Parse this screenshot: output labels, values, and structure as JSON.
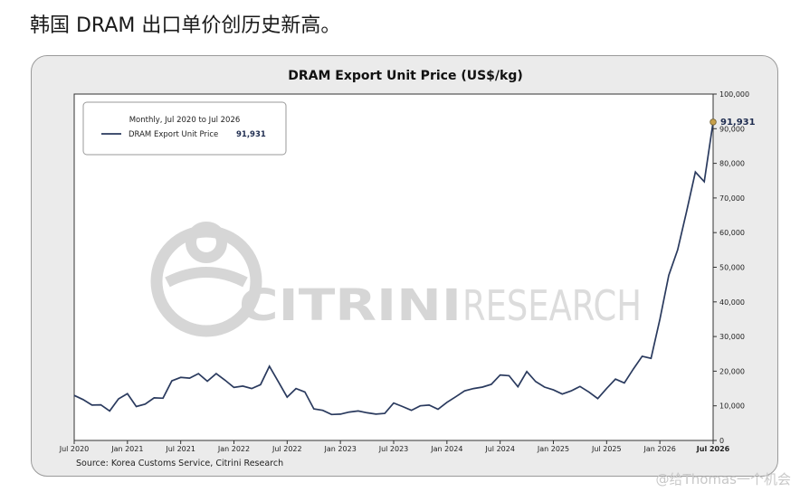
{
  "headline": "韩国 DRAM 出口单价创历史新高。",
  "source_note": "Source: Korea Customs Service, Citrini Research",
  "watermark_text": "@给Thomas一个机会",
  "logo": {
    "name": "citrini-research-logo",
    "text": "CITRINIRESEARCH"
  },
  "colors": {
    "line": "#2a3a5e",
    "marker": "#c8a04a",
    "grid": "#ebebeb"
  },
  "chart_data": {
    "type": "line",
    "title": "DRAM Export Unit Price (US$/kg)",
    "legend": {
      "title": "Monthly, Jul 2020 to Jul 2026",
      "label": "DRAM Export Unit Price",
      "value": "91,931",
      "position": "top-left"
    },
    "last_label": "91,931",
    "ylim": [
      0,
      100000
    ],
    "y_ticks": [
      "0",
      "10,000",
      "20,000",
      "30,000",
      "40,000",
      "50,000",
      "60,000",
      "70,000",
      "80,000",
      "90,000",
      "100,000"
    ],
    "y_axis_side": "right",
    "x_ticks": [
      "Jul 2020",
      "Jan 2021",
      "Jul 2021",
      "Jan 2022",
      "Jul 2022",
      "Jan 2023",
      "Jul 2023",
      "Jan 2024",
      "Jul 2024",
      "Jan 2025",
      "Jul 2025",
      "Jan 2026",
      "Jul 2026"
    ],
    "x_tick_bold": "Jul 2026",
    "x_months": [
      "2020-07",
      "2020-08",
      "2020-09",
      "2020-10",
      "2020-11",
      "2020-12",
      "2021-01",
      "2021-02",
      "2021-03",
      "2021-04",
      "2021-05",
      "2021-06",
      "2021-07",
      "2021-08",
      "2021-09",
      "2021-10",
      "2021-11",
      "2021-12",
      "2022-01",
      "2022-02",
      "2022-03",
      "2022-04",
      "2022-05",
      "2022-06",
      "2022-07",
      "2022-08",
      "2022-09",
      "2022-10",
      "2022-11",
      "2022-12",
      "2023-01",
      "2023-02",
      "2023-03",
      "2023-04",
      "2023-05",
      "2023-06",
      "2023-07",
      "2023-08",
      "2023-09",
      "2023-10",
      "2023-11",
      "2023-12",
      "2024-01",
      "2024-02",
      "2024-03",
      "2024-04",
      "2024-05",
      "2024-06",
      "2024-07",
      "2024-08",
      "2024-09",
      "2024-10",
      "2024-11",
      "2024-12",
      "2025-01",
      "2025-02",
      "2025-03",
      "2025-04",
      "2025-05",
      "2025-06",
      "2025-07",
      "2025-08",
      "2025-09",
      "2025-10",
      "2025-11",
      "2025-12",
      "2026-01",
      "2026-02",
      "2026-03",
      "2026-04",
      "2026-05",
      "2026-06",
      "2026-07"
    ],
    "series": [
      {
        "name": "DRAM Export Unit Price",
        "values": [
          13000,
          11800,
          10200,
          10300,
          8500,
          12000,
          13500,
          9800,
          10500,
          12300,
          12200,
          17200,
          18200,
          18000,
          19300,
          17100,
          19300,
          17400,
          15300,
          15700,
          15000,
          16100,
          21400,
          17000,
          12500,
          15000,
          14000,
          9100,
          8700,
          7500,
          7600,
          8200,
          8500,
          8000,
          7600,
          7800,
          10800,
          9800,
          8700,
          10000,
          10200,
          9000,
          11000,
          12600,
          14300,
          15000,
          15400,
          16200,
          18900,
          18700,
          15500,
          19900,
          17000,
          15400,
          14600,
          13400,
          14300,
          15600,
          14000,
          12100,
          15000,
          17700,
          16600,
          20600,
          24300,
          23700,
          35000,
          47700,
          55000,
          66000,
          77500,
          74700,
          91931
        ]
      }
    ]
  }
}
